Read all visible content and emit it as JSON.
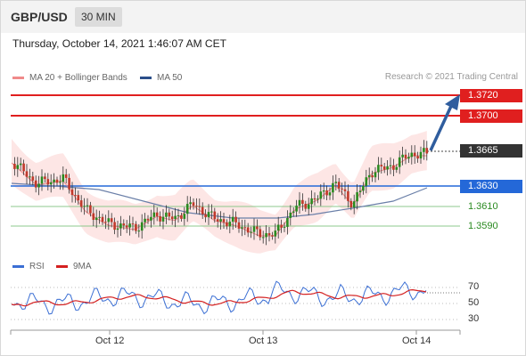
{
  "header": {
    "symbol": "GBP/USD",
    "timeframe": "30 MIN"
  },
  "timestamp": "Thursday, October 14, 2021 1:46:07 AM CET",
  "legend": {
    "ma20": {
      "label": "MA 20 + Bollinger Bands",
      "color": "#f08a8a"
    },
    "ma50": {
      "label": "MA 50",
      "color": "#2b4f8a"
    }
  },
  "credit": "Research © 2021 Trading Central",
  "levels": [
    {
      "value": "1.3720",
      "kind": "resistance"
    },
    {
      "value": "1.3700",
      "kind": "resistance"
    },
    {
      "value": "1.3665",
      "kind": "last"
    },
    {
      "value": "1.3630",
      "kind": "pivot"
    },
    {
      "value": "1.3610",
      "kind": "support"
    },
    {
      "value": "1.3590",
      "kind": "support"
    }
  ],
  "rsi_legend": {
    "rsi": {
      "label": "RSI",
      "color": "#3b6fd4"
    },
    "ma9": {
      "label": "9MA",
      "color": "#d42020"
    }
  },
  "rsi_axis": [
    "70",
    "50",
    "30"
  ],
  "x_axis": [
    "Oct 12",
    "Oct 13",
    "Oct 14"
  ],
  "colors": {
    "up": "#2a8a20",
    "down": "#c0392b",
    "band": "#fde2e0",
    "resistance": "#e01f1f",
    "pivot": "#2468d8",
    "support": "#8cc88c",
    "arrow": "#2f5d9e"
  }
}
